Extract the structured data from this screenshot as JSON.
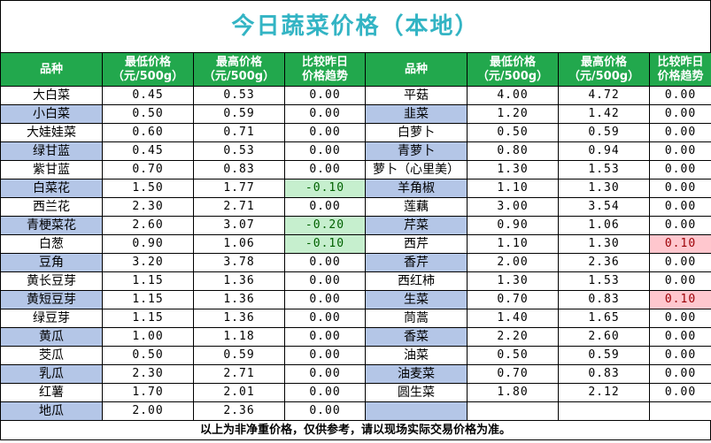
{
  "title": "今日蔬菜价格（本地）",
  "headers": {
    "name": "品种",
    "low_1": "最低价格",
    "low_2": "（元/500g）",
    "high_1": "最高价格",
    "high_2": "（元/500g）",
    "trend_1": "比较昨日",
    "trend_2": "价格趋势"
  },
  "rows": [
    {
      "l": {
        "name": "大白菜",
        "low": "0.45",
        "high": "0.53",
        "chg": "0.00",
        "state": ""
      },
      "r": {
        "name": "平菇",
        "low": "4.00",
        "high": "4.72",
        "chg": "0.00",
        "state": ""
      }
    },
    {
      "l": {
        "name": "小白菜",
        "low": "0.50",
        "high": "0.59",
        "chg": "0.00",
        "state": ""
      },
      "r": {
        "name": "韭菜",
        "low": "1.20",
        "high": "1.42",
        "chg": "0.00",
        "state": ""
      }
    },
    {
      "l": {
        "name": "大娃娃菜",
        "low": "0.60",
        "high": "0.71",
        "chg": "0.00",
        "state": ""
      },
      "r": {
        "name": "白萝卜",
        "low": "0.50",
        "high": "0.59",
        "chg": "0.00",
        "state": ""
      }
    },
    {
      "l": {
        "name": "绿甘蓝",
        "low": "0.45",
        "high": "0.53",
        "chg": "0.00",
        "state": ""
      },
      "r": {
        "name": "青萝卜",
        "low": "0.80",
        "high": "0.94",
        "chg": "0.00",
        "state": ""
      }
    },
    {
      "l": {
        "name": "紫甘蓝",
        "low": "0.70",
        "high": "0.83",
        "chg": "0.00",
        "state": ""
      },
      "r": {
        "name": "萝卜（心里美）",
        "low": "1.30",
        "high": "1.53",
        "chg": "0.00",
        "state": ""
      }
    },
    {
      "l": {
        "name": "白菜花",
        "low": "1.50",
        "high": "1.77",
        "chg": "-0.10",
        "state": "down"
      },
      "r": {
        "name": "羊角椒",
        "low": "1.10",
        "high": "1.30",
        "chg": "0.00",
        "state": ""
      }
    },
    {
      "l": {
        "name": "西兰花",
        "low": "2.30",
        "high": "2.71",
        "chg": "0.00",
        "state": ""
      },
      "r": {
        "name": "莲藕",
        "low": "3.00",
        "high": "3.54",
        "chg": "0.00",
        "state": ""
      }
    },
    {
      "l": {
        "name": "青梗菜花",
        "low": "2.60",
        "high": "3.07",
        "chg": "-0.20",
        "state": "down"
      },
      "r": {
        "name": "芹菜",
        "low": "0.90",
        "high": "1.06",
        "chg": "0.00",
        "state": ""
      }
    },
    {
      "l": {
        "name": "白葱",
        "low": "0.90",
        "high": "1.06",
        "chg": "-0.10",
        "state": "down"
      },
      "r": {
        "name": "西芹",
        "low": "1.10",
        "high": "1.30",
        "chg": "0.10",
        "state": "up"
      }
    },
    {
      "l": {
        "name": "豆角",
        "low": "3.20",
        "high": "3.78",
        "chg": "0.00",
        "state": ""
      },
      "r": {
        "name": "香芹",
        "low": "2.00",
        "high": "2.36",
        "chg": "0.00",
        "state": ""
      }
    },
    {
      "l": {
        "name": "黄长豆芽",
        "low": "1.15",
        "high": "1.36",
        "chg": "0.00",
        "state": ""
      },
      "r": {
        "name": "西红柿",
        "low": "1.30",
        "high": "1.53",
        "chg": "0.00",
        "state": ""
      }
    },
    {
      "l": {
        "name": "黄短豆芽",
        "low": "1.15",
        "high": "1.36",
        "chg": "0.00",
        "state": ""
      },
      "r": {
        "name": "生菜",
        "low": "0.70",
        "high": "0.83",
        "chg": "0.10",
        "state": "up"
      }
    },
    {
      "l": {
        "name": "绿豆芽",
        "low": "1.15",
        "high": "1.36",
        "chg": "0.00",
        "state": ""
      },
      "r": {
        "name": "茼蒿",
        "low": "1.40",
        "high": "1.65",
        "chg": "0.00",
        "state": ""
      }
    },
    {
      "l": {
        "name": "黄瓜",
        "low": "1.00",
        "high": "1.18",
        "chg": "0.00",
        "state": ""
      },
      "r": {
        "name": "香菜",
        "low": "2.20",
        "high": "2.60",
        "chg": "0.00",
        "state": ""
      }
    },
    {
      "l": {
        "name": "茭瓜",
        "low": "0.50",
        "high": "0.59",
        "chg": "0.00",
        "state": ""
      },
      "r": {
        "name": "油菜",
        "low": "0.50",
        "high": "0.59",
        "chg": "0.00",
        "state": ""
      }
    },
    {
      "l": {
        "name": "乳瓜",
        "low": "2.30",
        "high": "2.71",
        "chg": "0.00",
        "state": ""
      },
      "r": {
        "name": "油麦菜",
        "low": "0.70",
        "high": "0.83",
        "chg": "0.00",
        "state": ""
      }
    },
    {
      "l": {
        "name": "红薯",
        "low": "1.70",
        "high": "2.01",
        "chg": "0.00",
        "state": ""
      },
      "r": {
        "name": "圆生菜",
        "low": "1.80",
        "high": "2.12",
        "chg": "0.00",
        "state": ""
      }
    },
    {
      "l": {
        "name": "地瓜",
        "low": "2.00",
        "high": "2.36",
        "chg": "0.00",
        "state": ""
      },
      "r": {
        "name": "",
        "low": "",
        "high": "",
        "chg": "",
        "state": ""
      }
    }
  ],
  "footer": "以上为非净重价格，仅供参考，请以现场实际交易价格为准。",
  "colors": {
    "title": "#33b4c4",
    "header_bg": "#22a84d",
    "alt_row_name": "#b4c6e7",
    "decrease_bg": "#c6efce",
    "increase_bg": "#ffc7ce"
  }
}
